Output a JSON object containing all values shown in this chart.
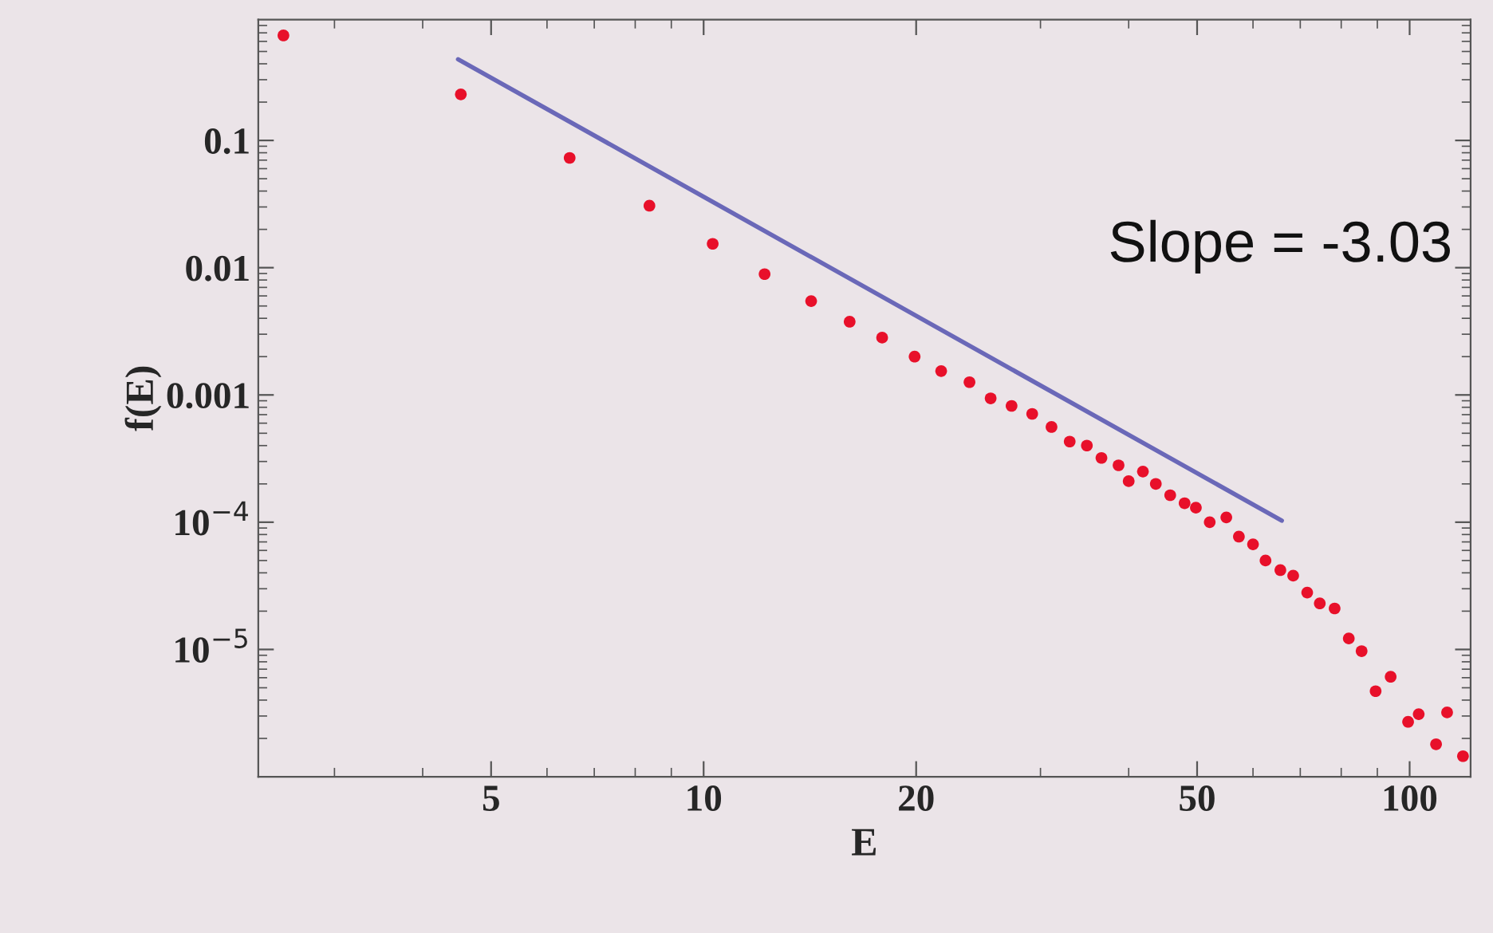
{
  "chart_data": {
    "type": "scatter",
    "xlabel": "E",
    "ylabel": "f(E)",
    "log": "xy",
    "grid": false,
    "legend": false,
    "xlim": [
      2.34,
      122
    ],
    "ylim": [
      1e-06,
      0.89
    ],
    "xticks": [
      5,
      10,
      20,
      50,
      100
    ],
    "yticks": [
      0.1,
      0.01,
      0.001,
      {
        "value": 0.0001,
        "label": "10$^{−4}$"
      },
      {
        "value": 1e-05,
        "label": "10$^{−5}$"
      }
    ],
    "annotations": [
      "Slope = -3.03"
    ],
    "series": [
      {
        "marker": "circle",
        "color": "#e8102a",
        "x": [
          2.54,
          4.53,
          6.46,
          8.38,
          10.3,
          12.2,
          14.2,
          16.1,
          17.9,
          19.9,
          21.7,
          23.8,
          25.5,
          27.3,
          29.2,
          31.1,
          33.0,
          34.9,
          36.6,
          38.7,
          40.0,
          41.9,
          43.7,
          45.8,
          48.0,
          49.8,
          52.1,
          55.0,
          57.3,
          60.0,
          62.5,
          65.6,
          68.4,
          71.6,
          74.6,
          78.3,
          82.0,
          85.5,
          89.5,
          94.0,
          99.5,
          103,
          109,
          113,
          119
        ],
        "values": [
          0.668,
          0.23,
          0.0729,
          0.0307,
          0.0154,
          0.0089,
          0.00546,
          0.00376,
          0.00282,
          0.002,
          0.00154,
          0.00126,
          0.00094,
          0.00082,
          0.00071,
          0.00056,
          0.00043,
          0.0004,
          0.00032,
          0.00028,
          0.00021,
          0.00025,
          0.0002,
          0.000163,
          0.000141,
          0.00013,
          0.0001,
          0.000109,
          7.7e-05,
          6.7e-05,
          5e-05,
          4.2e-05,
          3.8e-05,
          2.8e-05,
          2.3e-05,
          2.1e-05,
          1.22e-05,
          9.7e-06,
          4.7e-06,
          6.1e-06,
          2.7e-06,
          3.1e-06,
          1.8e-06,
          3.2e-06,
          1.45e-06
        ]
      },
      {
        "type": "line",
        "color": "#6a68b8",
        "x": [
          4.49,
          65.9
        ],
        "values": [
          0.434,
          0.000103
        ]
      }
    ]
  }
}
